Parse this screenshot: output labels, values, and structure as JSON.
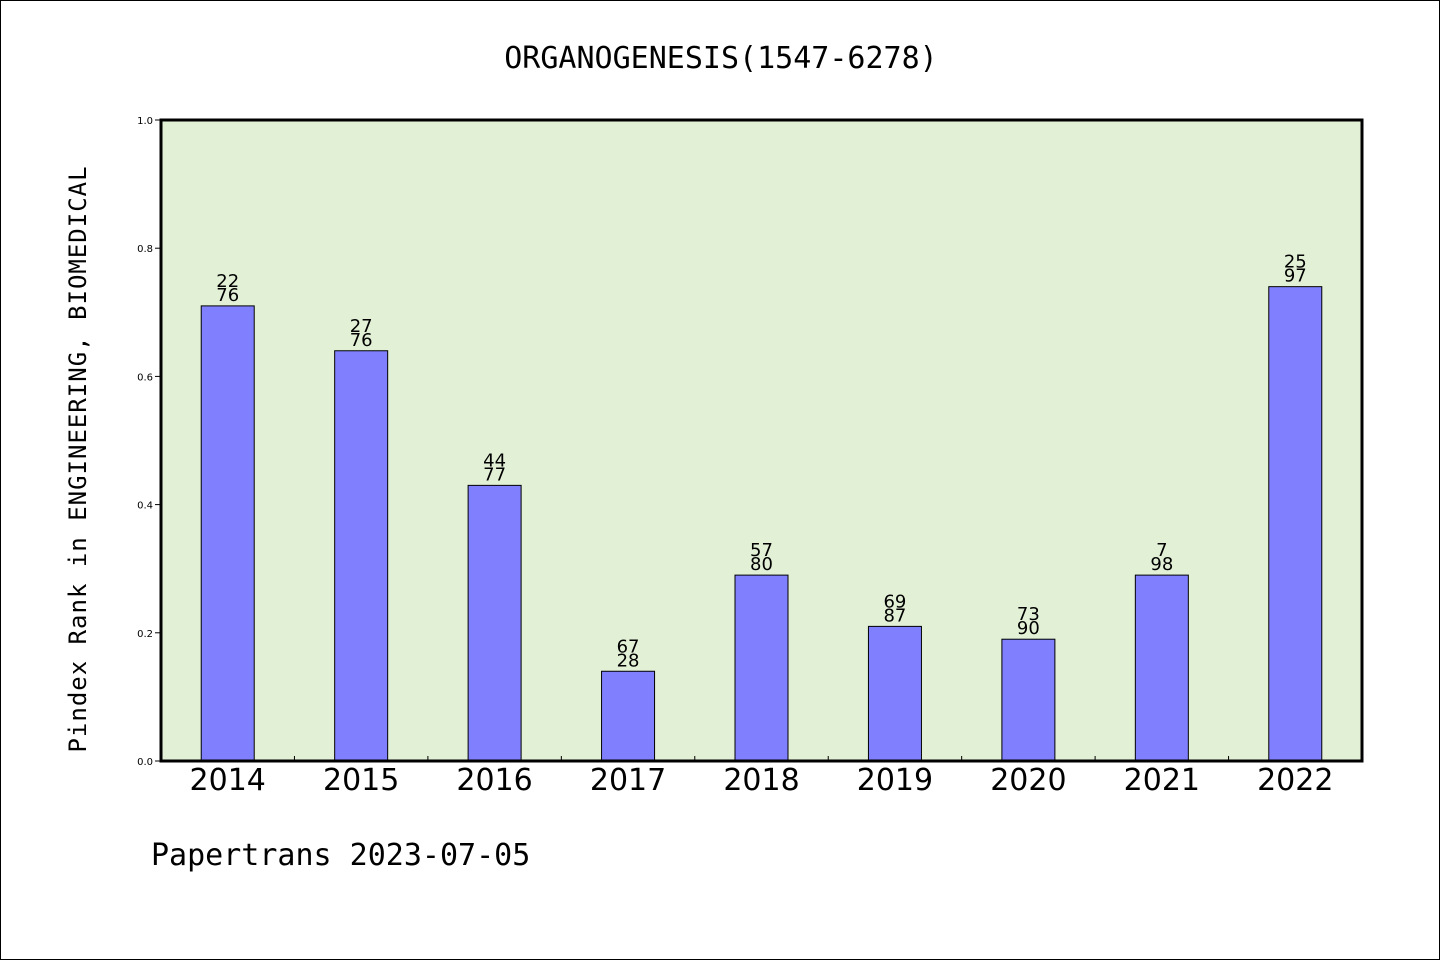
{
  "chart_data": {
    "type": "bar",
    "title": "ORGANOGENESIS(1547-6278)",
    "xlabel": "",
    "ylabel": "Pindex Rank in ENGINEERING, BIOMEDICAL",
    "categories": [
      "2014",
      "2015",
      "2016",
      "2017",
      "2018",
      "2019",
      "2020",
      "2021",
      "2022"
    ],
    "values": [
      0.71,
      0.64,
      0.43,
      0.14,
      0.29,
      0.21,
      0.19,
      0.29,
      0.74
    ],
    "bar_labels_top": [
      "22",
      "27",
      "44",
      "67",
      "57",
      "69",
      "73",
      "7",
      "25"
    ],
    "bar_labels_bottom": [
      "76",
      "76",
      "77",
      "28",
      "80",
      "87",
      "90",
      "98",
      "97"
    ],
    "ylim": [
      0.0,
      1.0
    ],
    "yticks": [
      "0.0",
      "0.2",
      "0.4",
      "0.6",
      "0.8",
      "1.0"
    ],
    "grid": false,
    "colors": {
      "bar": "#8080ff",
      "plot_background": "#e2f0d6",
      "axis": "#000000"
    }
  },
  "footer": {
    "text": "Papertrans 2023-07-05"
  }
}
